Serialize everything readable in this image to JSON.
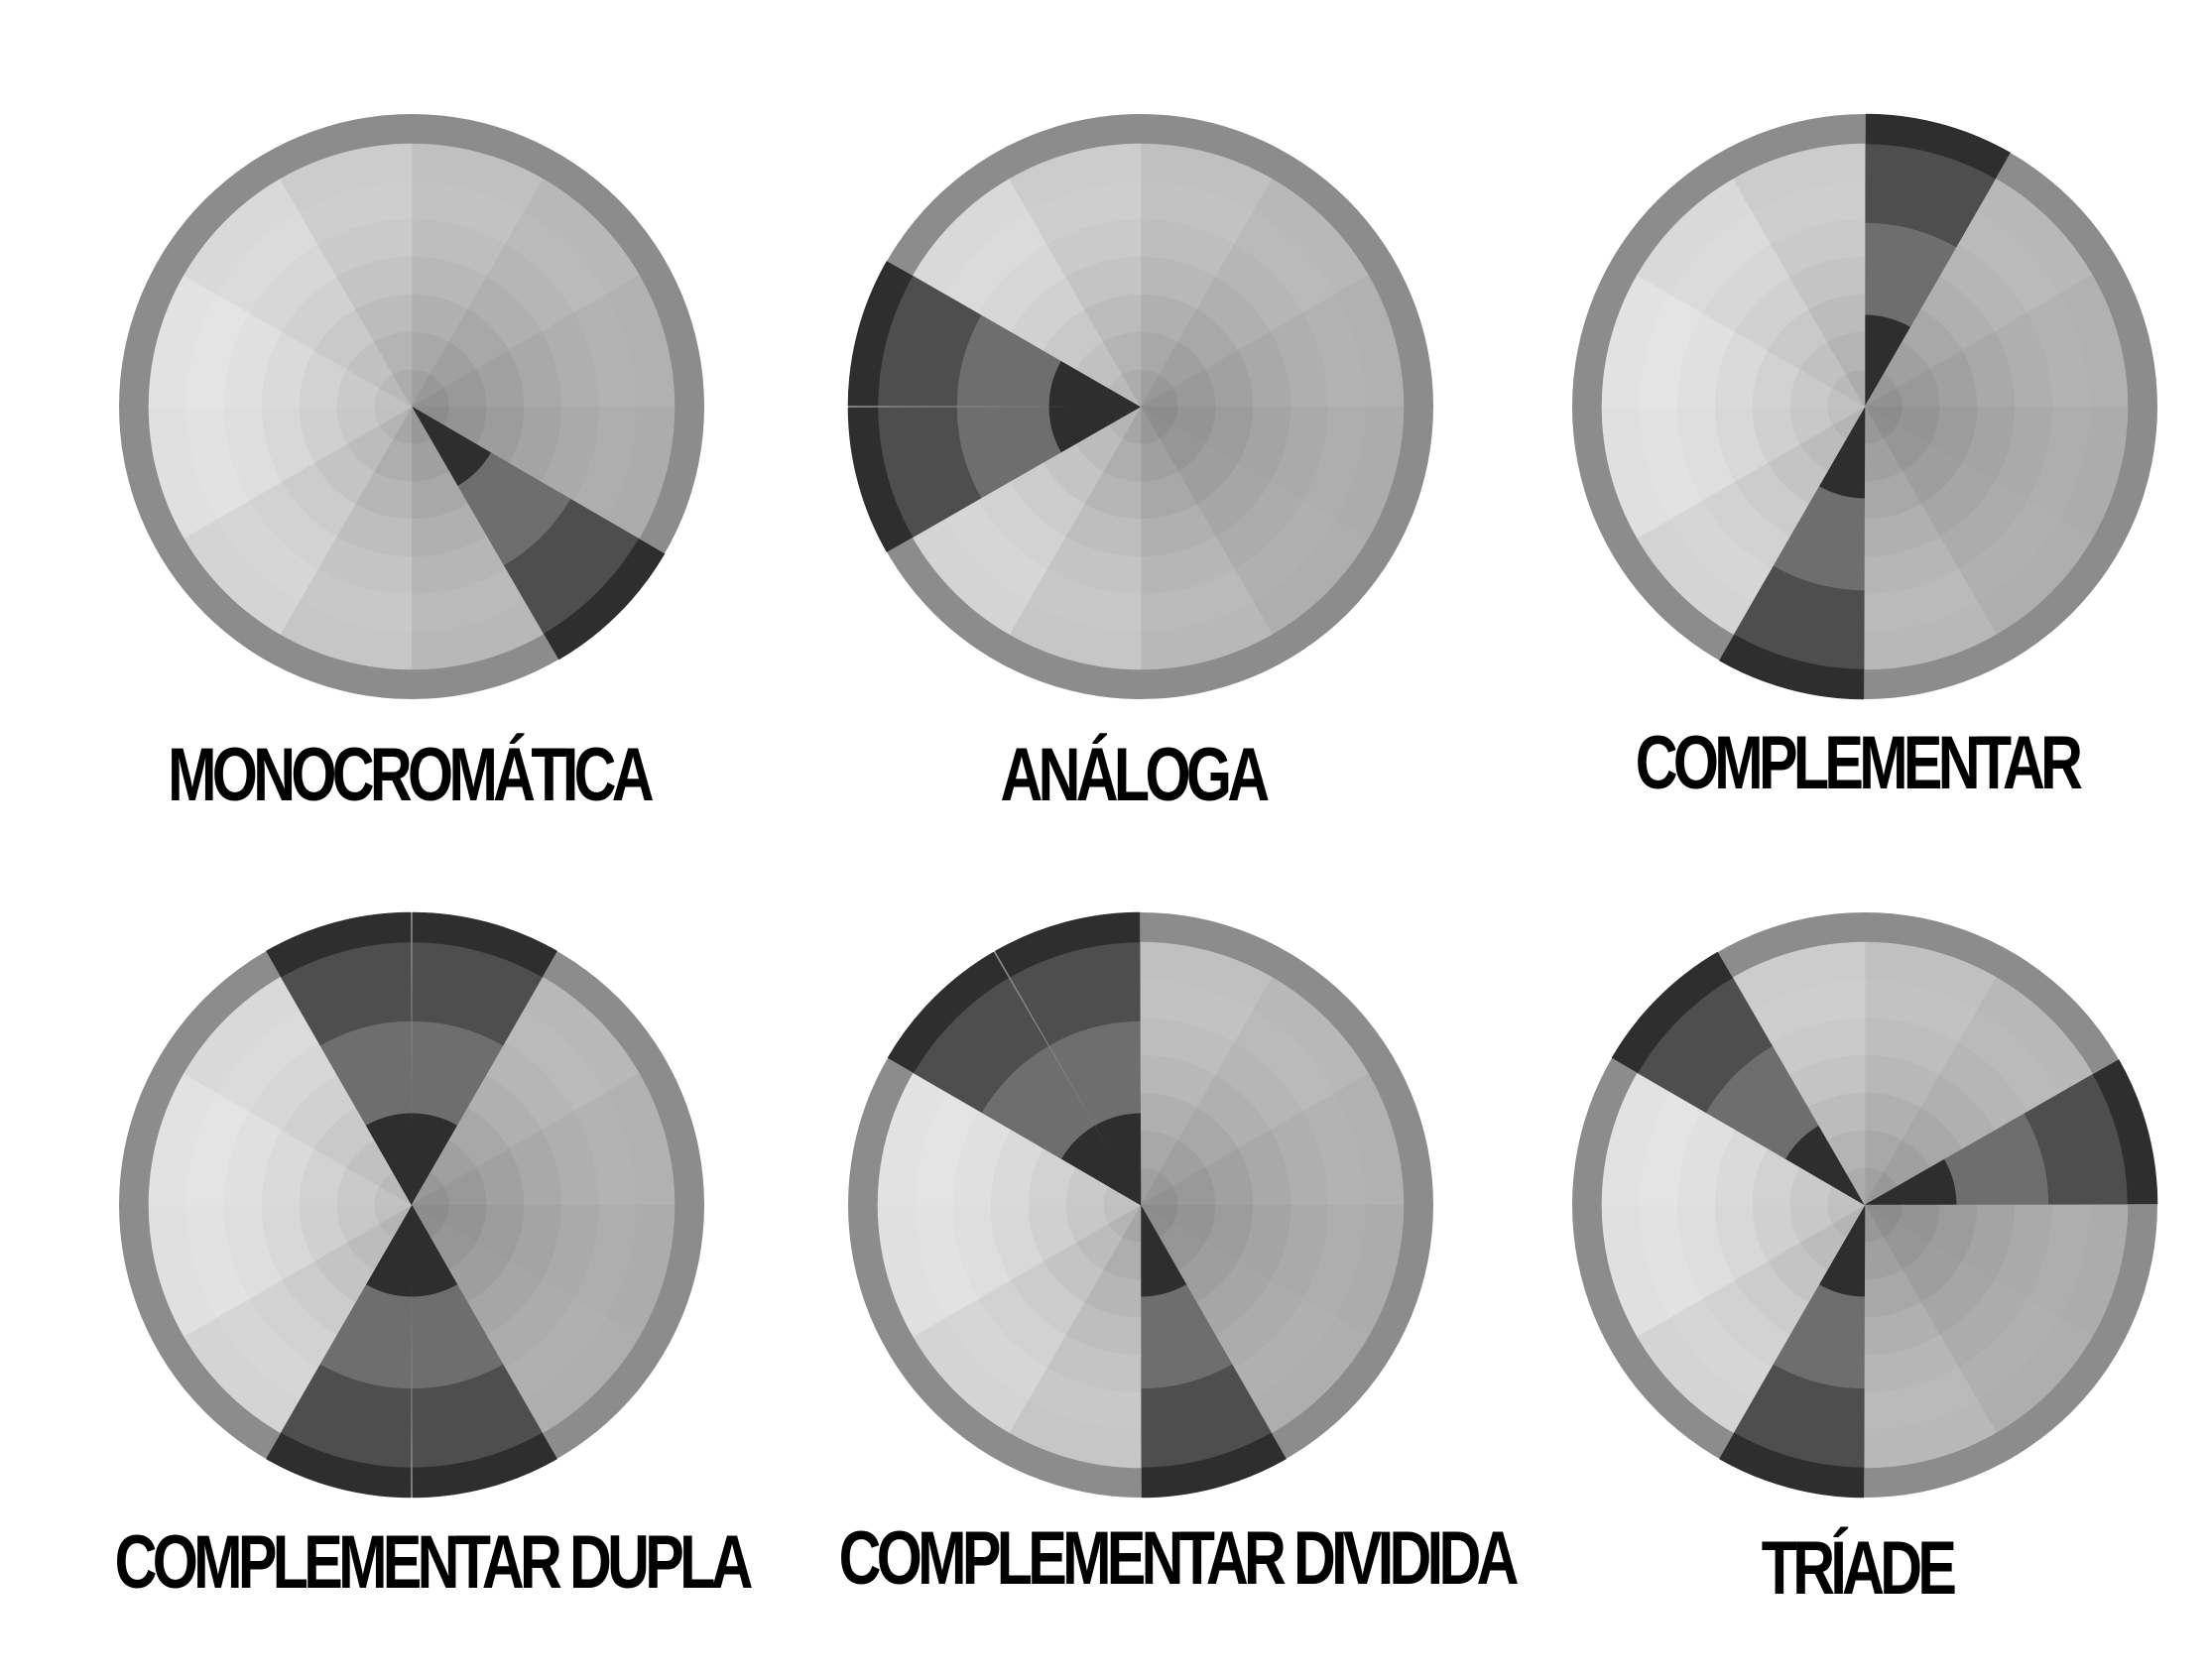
{
  "diagram": {
    "ring_count": 7,
    "segment_count": 12,
    "colors": {
      "background": "#ffffff",
      "outer_ring": "#8c8c8c",
      "highlight_dark": "#2e2e2e",
      "highlight_mid": "#4e4e4e",
      "highlight_light": "#6e6e6e",
      "label": "#000000"
    },
    "wheels": [
      {
        "id": "monocromatica",
        "label": "MONOCROMÁTICA",
        "highlight_hours": [
          4
        ]
      },
      {
        "id": "analoga",
        "label": "ANÁLOGA",
        "highlight_hours": [
          8,
          9
        ]
      },
      {
        "id": "complementar",
        "label": "COMPLEMENTAR",
        "highlight_hours": [
          0,
          6
        ]
      },
      {
        "id": "complementar-dupla",
        "label": "COMPLEMENTAR DUPLA",
        "highlight_hours": [
          11,
          0,
          5,
          6
        ]
      },
      {
        "id": "complementar-dividida",
        "label": "COMPLEMENTAR DIVIDIDA",
        "highlight_hours": [
          10,
          11,
          5
        ]
      },
      {
        "id": "triade",
        "label": "TRÍADE",
        "highlight_hours": [
          2,
          6,
          10
        ]
      }
    ]
  }
}
